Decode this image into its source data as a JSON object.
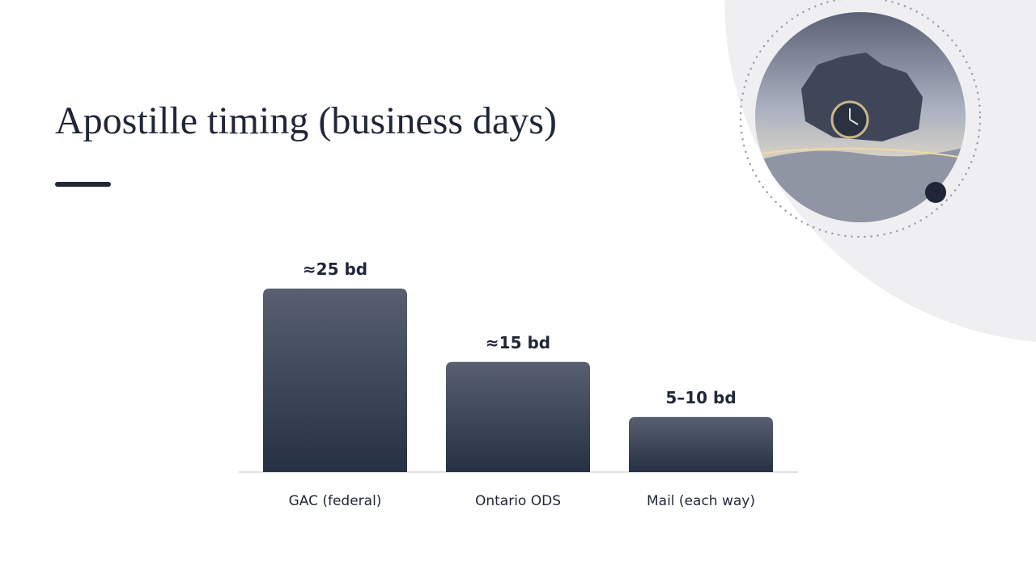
{
  "chart_data": {
    "type": "bar",
    "title": "Apostille timing (business days)",
    "categories": [
      "GAC (federal)",
      "Ontario ODS",
      "Mail (each way)"
    ],
    "values": [
      25,
      15,
      7.5
    ],
    "value_labels": [
      "≈25 bd",
      "≈15 bd",
      "5–10 bd"
    ]
  }
}
